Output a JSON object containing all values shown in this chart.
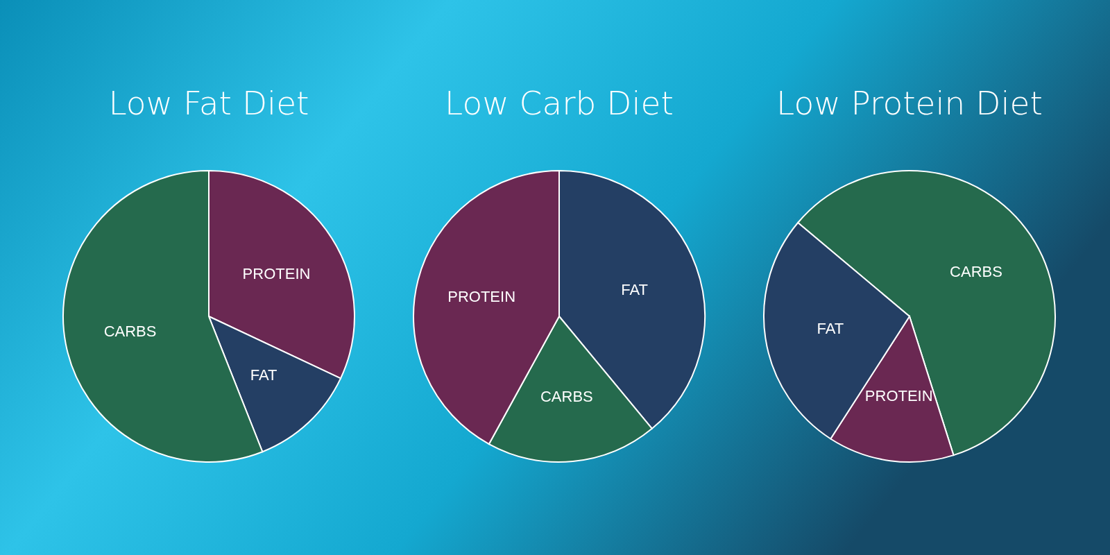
{
  "chart_data": [
    {
      "type": "pie",
      "title": "Low Fat Diet",
      "categories": [
        "PROTEIN",
        "FAT",
        "CARBS"
      ],
      "values": [
        32,
        12,
        56
      ],
      "colors": [
        "#6a2852",
        "#243f64",
        "#256a4d"
      ]
    },
    {
      "type": "pie",
      "title": "Low Carb Diet",
      "categories": [
        "FAT",
        "CARBS",
        "PROTEIN"
      ],
      "values": [
        39,
        19,
        42
      ],
      "colors": [
        "#243f64",
        "#256a4d",
        "#6a2852"
      ]
    },
    {
      "type": "pie",
      "title": "Low Protein Diet",
      "categories": [
        "CARBS",
        "PROTEIN",
        "FAT"
      ],
      "values": [
        59,
        14,
        27
      ],
      "colors": [
        "#256a4d",
        "#6a2852",
        "#243f64"
      ]
    }
  ]
}
